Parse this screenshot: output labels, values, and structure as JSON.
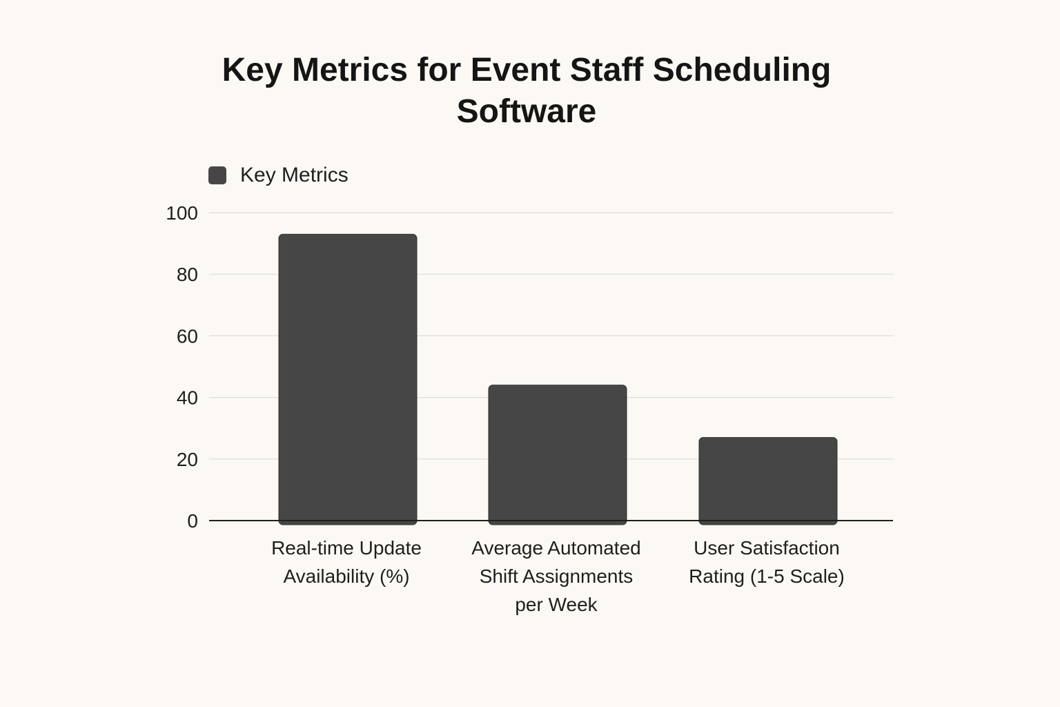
{
  "chart_data": {
    "type": "bar",
    "title": "Key Metrics for Event Staff Scheduling Software",
    "title_lines": [
      "Key Metrics for Event Staff Scheduling",
      "Software"
    ],
    "categories": [
      "Real-time Update Availability (%)",
      "Average Automated Shift Assignments per Week",
      "User Satisfaction Rating (1-5 Scale)"
    ],
    "category_lines": [
      [
        "Real-time Update",
        "Availability (%)"
      ],
      [
        "Average Automated",
        "Shift Assignments",
        "per Week"
      ],
      [
        "User Satisfaction",
        "Rating (1-5 Scale)"
      ]
    ],
    "series": [
      {
        "name": "Key Metrics",
        "values": [
          93,
          44,
          27
        ],
        "color": "#464646"
      }
    ],
    "xlabel": "",
    "ylabel": "",
    "ylim": [
      0,
      100
    ],
    "yticks": [
      0,
      20,
      40,
      60,
      80,
      100
    ],
    "grid": true,
    "legend_position": "top-left"
  }
}
